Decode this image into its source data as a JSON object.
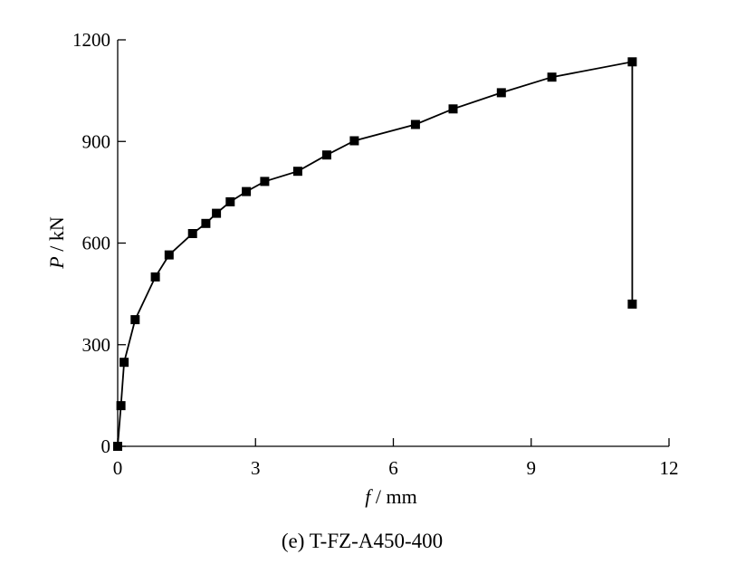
{
  "caption": "(e) T-FZ-A450-400",
  "chart_data": {
    "type": "line",
    "title": "",
    "xlabel_var": "f",
    "xlabel_unit": " / mm",
    "ylabel_var": "P",
    "ylabel_unit": " / kN",
    "xlim": [
      0,
      12
    ],
    "ylim": [
      0,
      1200
    ],
    "xticks": [
      0,
      3,
      6,
      9,
      12
    ],
    "yticks": [
      0,
      300,
      600,
      900,
      1200
    ],
    "xtick_labels": [
      "0",
      "3",
      "6",
      "9",
      "12"
    ],
    "ytick_labels": [
      "0",
      "300",
      "600",
      "900",
      "1200"
    ],
    "grid": false,
    "legend": "none",
    "series": [
      {
        "marker": "square",
        "color": "#000000",
        "x": [
          0.0,
          0.07,
          0.14,
          0.38,
          0.82,
          1.12,
          1.63,
          1.92,
          2.15,
          2.45,
          2.8,
          3.2,
          3.92,
          4.55,
          5.15,
          6.48,
          7.3,
          8.35,
          9.45,
          11.2,
          11.2
        ],
        "y": [
          0,
          120,
          248,
          374,
          500,
          565,
          628,
          658,
          688,
          722,
          752,
          782,
          812,
          860,
          902,
          950,
          996,
          1044,
          1090,
          1135,
          420
        ]
      }
    ]
  }
}
